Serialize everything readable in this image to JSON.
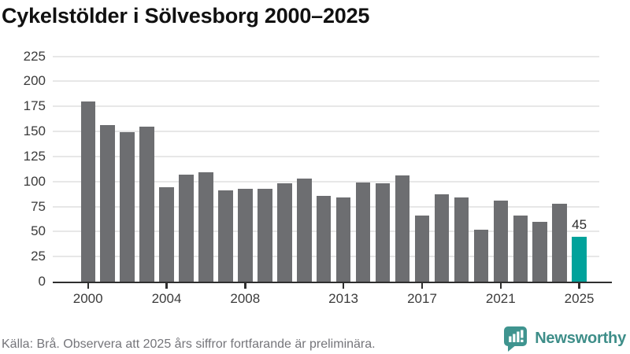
{
  "header": {
    "title": "Cykelstölder i Sölvesborg 2000–2025"
  },
  "chart_data": {
    "type": "bar",
    "title": "Cykelstölder i Sölvesborg 2000–2025",
    "categories": [
      2000,
      2001,
      2002,
      2003,
      2004,
      2005,
      2006,
      2007,
      2008,
      2009,
      2010,
      2011,
      2012,
      2013,
      2014,
      2015,
      2016,
      2017,
      2018,
      2019,
      2020,
      2021,
      2022,
      2023,
      2024,
      2025
    ],
    "values": [
      180,
      156,
      149,
      155,
      94,
      107,
      109,
      91,
      93,
      93,
      98,
      103,
      86,
      84,
      99,
      98,
      106,
      66,
      87,
      84,
      52,
      81,
      66,
      60,
      78,
      45
    ],
    "highlight_category": 2025,
    "data_label": {
      "category": 2025,
      "text": "45"
    },
    "xlabel": "",
    "ylabel": "",
    "y_axis": {
      "ticks": [
        0,
        25,
        50,
        75,
        100,
        125,
        150,
        175,
        200,
        225
      ],
      "range": [
        0,
        235
      ]
    },
    "x_axis": {
      "ticks": [
        2000,
        2004,
        2008,
        2013,
        2017,
        2021,
        2025
      ]
    },
    "grid": "horizontal",
    "legend": "none",
    "colors": {
      "bar": "#6d6e71",
      "highlight": "#00a29b",
      "grid": "#e7e7e7",
      "axis": "#2f2f2f",
      "tick_text": "#3b3b3b"
    }
  },
  "footer": {
    "source": "Källa: Brå. Observera att 2025 års siffror fortfarande är preliminära."
  },
  "branding": {
    "label": "Newsworthy",
    "icon": "newsworthy-speech-bubble-chart-icon",
    "icon_color": "#3f948f",
    "text_color": "#3e8e89"
  }
}
